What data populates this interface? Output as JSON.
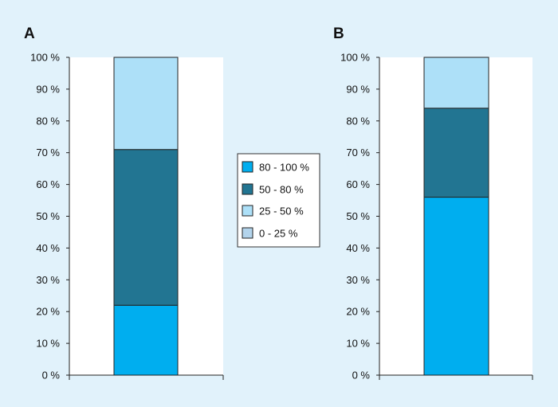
{
  "chart_data": {
    "type": "bar",
    "stacked": true,
    "ylim": [
      0,
      100
    ],
    "yticks": [
      0,
      10,
      20,
      30,
      40,
      50,
      60,
      70,
      80,
      90,
      100
    ],
    "ytick_labels": [
      "0 %",
      "10 %",
      "20 %",
      "30 %",
      "40 %",
      "50 %",
      "60 %",
      "70 %",
      "80 %",
      "90 %",
      "100 %"
    ],
    "panels": [
      {
        "label": "A",
        "stacks": [
          {
            "series": "80 - 100 %",
            "value": 22
          },
          {
            "series": "50 - 80 %",
            "value": 49
          },
          {
            "series": "25 - 50 %",
            "value": 29
          }
        ]
      },
      {
        "label": "B",
        "stacks": [
          {
            "series": "80 - 100 %",
            "value": 56
          },
          {
            "series": "50 - 80 %",
            "value": 28
          },
          {
            "series": "25 - 50 %",
            "value": 16
          }
        ]
      }
    ],
    "legend": {
      "placement": "center",
      "items": [
        {
          "name": "80 - 100 %",
          "color": "#00aeef"
        },
        {
          "name": "50 - 80 %",
          "color": "#227592"
        },
        {
          "name": "25 - 50 %",
          "color": "#ade0f8"
        },
        {
          "name": "0 - 25 %",
          "color": "#b3d4ec"
        }
      ]
    },
    "grid": false,
    "colors": {
      "background": "#e1f2fb",
      "plot_area": "#ffffff",
      "axis": "#222222"
    }
  }
}
